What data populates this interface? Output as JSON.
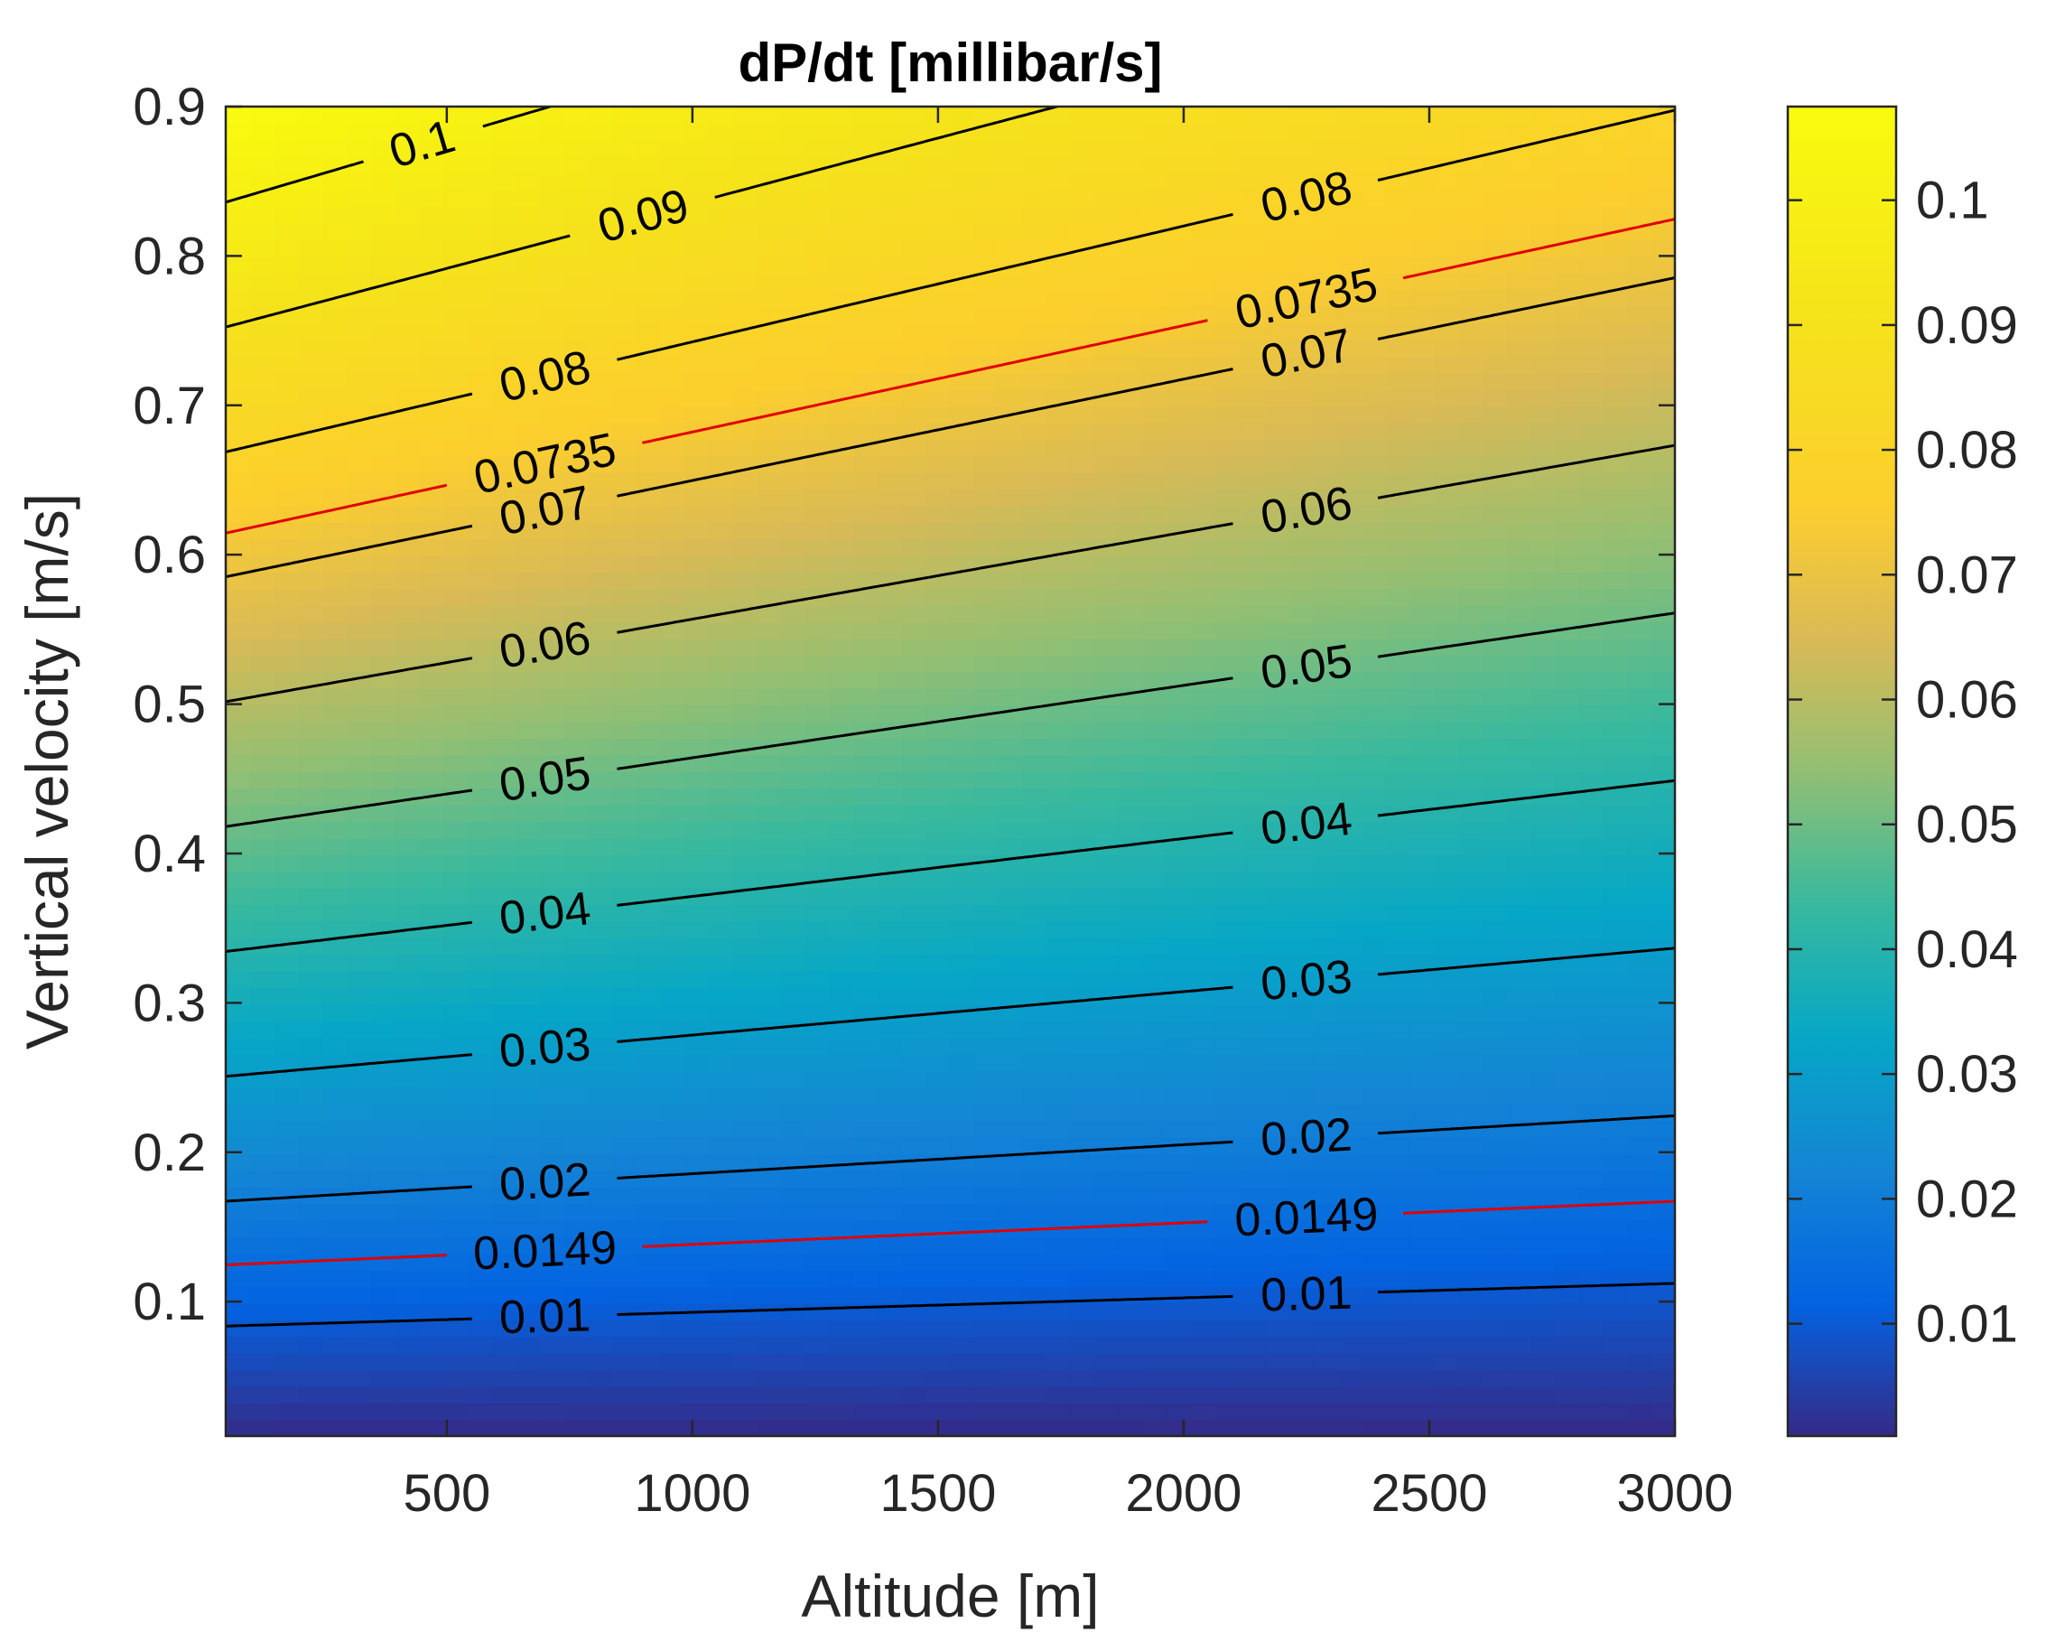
{
  "chart_data": {
    "type": "contour",
    "title": "dP/dt [millibar/s]",
    "xlabel": "Altitude [m]",
    "ylabel": "Vertical velocity [m/s]",
    "xlim": [
      50,
      3000
    ],
    "ylim": [
      0.01,
      0.9
    ],
    "xticks": [
      500,
      1000,
      1500,
      2000,
      2500,
      3000
    ],
    "yticks": [
      0.1,
      0.2,
      0.3,
      0.4,
      0.5,
      0.6,
      0.7,
      0.8,
      0.9
    ],
    "colorbar": {
      "range": [
        0.001,
        0.1075
      ],
      "ticks": [
        0.01,
        0.02,
        0.03,
        0.04,
        0.05,
        0.06,
        0.07,
        0.08,
        0.09,
        0.1
      ],
      "colormap": "parula"
    },
    "contours": [
      {
        "level": 0.01,
        "label": "0.01",
        "color": "#000000",
        "y_at_x_min": 0.084,
        "y_at_x_max": 0.113,
        "label_x": [
          700,
          2250
        ]
      },
      {
        "level": 0.0149,
        "label": "0.0149",
        "color": "#e00000",
        "y_at_x_min": 0.126,
        "y_at_x_max": 0.168,
        "label_x": [
          700,
          2250
        ]
      },
      {
        "level": 0.02,
        "label": "0.02",
        "color": "#000000",
        "y_at_x_min": 0.168,
        "y_at_x_max": 0.225,
        "label_x": [
          700,
          2250
        ]
      },
      {
        "level": 0.03,
        "label": "0.03",
        "color": "#000000",
        "y_at_x_min": 0.251,
        "y_at_x_max": 0.337,
        "label_x": [
          700,
          2250
        ]
      },
      {
        "level": 0.04,
        "label": "0.04",
        "color": "#000000",
        "y_at_x_min": 0.334,
        "y_at_x_max": 0.449,
        "label_x": [
          700,
          2250
        ]
      },
      {
        "level": 0.05,
        "label": "0.05",
        "color": "#000000",
        "y_at_x_min": 0.418,
        "y_at_x_max": 0.561,
        "label_x": [
          700,
          2250
        ]
      },
      {
        "level": 0.06,
        "label": "0.06",
        "color": "#000000",
        "y_at_x_min": 0.501,
        "y_at_x_max": 0.673,
        "label_x": [
          700,
          2250
        ]
      },
      {
        "level": 0.07,
        "label": "0.07",
        "color": "#000000",
        "y_at_x_min": 0.585,
        "y_at_x_max": 0.785,
        "label_x": [
          700,
          2250
        ]
      },
      {
        "level": 0.0735,
        "label": "0.0735",
        "color": "#e00000",
        "y_at_x_min": 0.614,
        "y_at_x_max": 0.825,
        "label_x": [
          700,
          2250
        ]
      },
      {
        "level": 0.08,
        "label": "0.08",
        "color": "#000000",
        "y_at_x_min": 0.668,
        "y_at_x_max": 0.9,
        "label_x": [
          700,
          2250
        ]
      },
      {
        "level": 0.09,
        "label": "0.09",
        "color": "#000000",
        "y_at_x_min": 0.752,
        "y_at_x_max": 0.9,
        "label_x": [
          900
        ]
      },
      {
        "level": 0.1,
        "label": "0.1",
        "color": "#000000",
        "y_at_x_min": 0.835,
        "y_at_x_max": 0.9,
        "label_x": [
          450
        ]
      }
    ]
  }
}
